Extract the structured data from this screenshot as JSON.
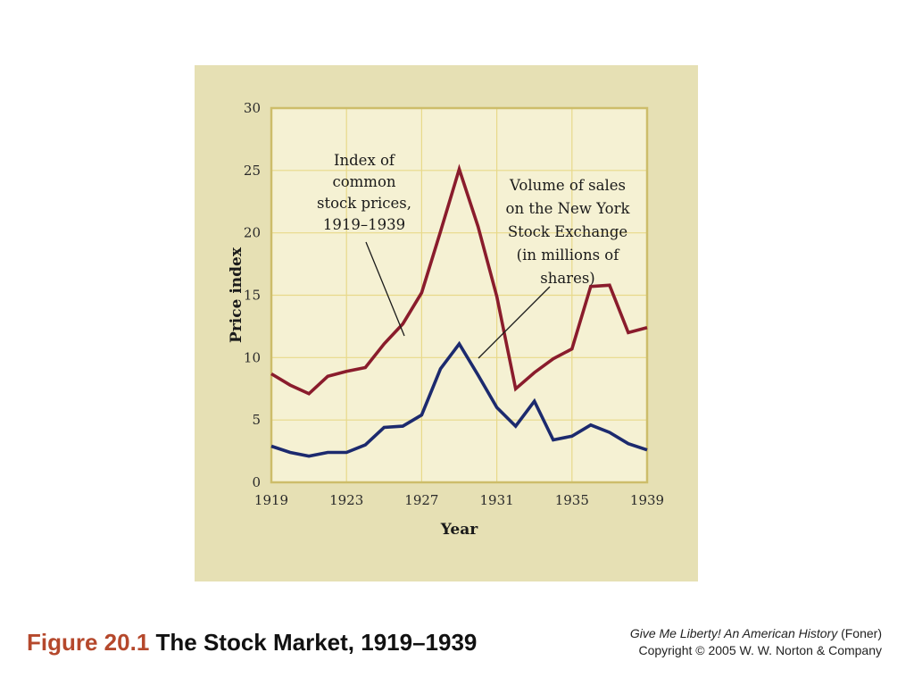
{
  "chart_data": {
    "type": "line",
    "ylabel": "Price index",
    "xlabel": "Year",
    "ylim": [
      0,
      30
    ],
    "xlim": [
      1919,
      1939
    ],
    "yticks": [
      "0",
      "5",
      "10",
      "15",
      "20",
      "25",
      "30"
    ],
    "xticks": [
      "1919",
      "1923",
      "1927",
      "1931",
      "1935",
      "1939"
    ],
    "grid": true,
    "colors": {
      "panel": "#e6e0b4",
      "plot": "#f5f1d3",
      "grid": "#e8d98a",
      "stock_line": "#8a1c2c",
      "volume_line": "#1c2a6e"
    },
    "series": [
      {
        "key": "stock_prices",
        "x": [
          1919,
          1920,
          1921,
          1922,
          1923,
          1924,
          1925,
          1926,
          1927,
          1928,
          1929,
          1930,
          1931,
          1932,
          1933,
          1934,
          1935,
          1936,
          1937,
          1938,
          1939
        ],
        "values": [
          8.7,
          7.8,
          7.1,
          8.5,
          8.9,
          9.2,
          11.1,
          12.7,
          15.2,
          20.1,
          25.1,
          20.5,
          14.9,
          7.5,
          8.8,
          9.9,
          10.7,
          15.7,
          15.8,
          12.0,
          12.4
        ]
      },
      {
        "key": "sales_volume",
        "x": [
          1919,
          1920,
          1921,
          1922,
          1923,
          1924,
          1925,
          1926,
          1927,
          1928,
          1929,
          1930,
          1931,
          1932,
          1933,
          1934,
          1935,
          1936,
          1937,
          1938,
          1939
        ],
        "values": [
          2.9,
          2.4,
          2.1,
          2.4,
          2.4,
          3.0,
          4.4,
          4.5,
          5.4,
          9.1,
          11.1,
          8.6,
          6.0,
          4.5,
          6.5,
          3.4,
          3.7,
          4.6,
          4.0,
          3.1,
          2.6
        ]
      }
    ],
    "annotations": {
      "stock_label": [
        "Index of",
        "common",
        "stock prices,",
        "1919–1939"
      ],
      "volume_label": [
        "Volume of sales",
        "on the New York",
        "Stock Exchange",
        "(in millions of",
        "shares)"
      ]
    }
  },
  "caption": {
    "figure_number": "Figure 20.1",
    "title": "The Stock Market, 1919–1939"
  },
  "source": {
    "book_title": "Give Me Liberty! An American History",
    "author": " (Foner)",
    "copyright": "Copyright © 2005 W. W. Norton & Company"
  }
}
